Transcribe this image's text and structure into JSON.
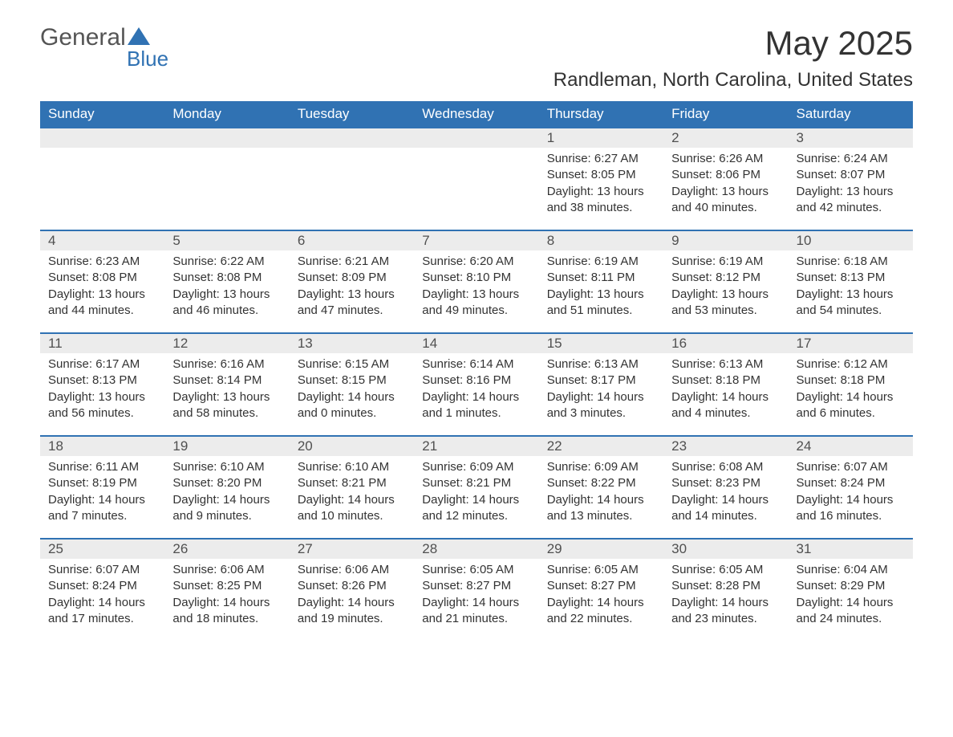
{
  "logo": {
    "general": "General",
    "blue": "Blue"
  },
  "title": "May 2025",
  "location": "Randleman, North Carolina, United States",
  "colors": {
    "header_bg": "#3072b3",
    "header_text": "#ffffff",
    "daynum_bg": "#ececec",
    "border": "#3072b3",
    "text": "#333333"
  },
  "weekday_labels": [
    "Sunday",
    "Monday",
    "Tuesday",
    "Wednesday",
    "Thursday",
    "Friday",
    "Saturday"
  ],
  "first_weekday_index": 4,
  "days": [
    {
      "n": 1,
      "sunrise": "6:27 AM",
      "sunset": "8:05 PM",
      "dh": 13,
      "dm": 38
    },
    {
      "n": 2,
      "sunrise": "6:26 AM",
      "sunset": "8:06 PM",
      "dh": 13,
      "dm": 40
    },
    {
      "n": 3,
      "sunrise": "6:24 AM",
      "sunset": "8:07 PM",
      "dh": 13,
      "dm": 42
    },
    {
      "n": 4,
      "sunrise": "6:23 AM",
      "sunset": "8:08 PM",
      "dh": 13,
      "dm": 44
    },
    {
      "n": 5,
      "sunrise": "6:22 AM",
      "sunset": "8:08 PM",
      "dh": 13,
      "dm": 46
    },
    {
      "n": 6,
      "sunrise": "6:21 AM",
      "sunset": "8:09 PM",
      "dh": 13,
      "dm": 47
    },
    {
      "n": 7,
      "sunrise": "6:20 AM",
      "sunset": "8:10 PM",
      "dh": 13,
      "dm": 49
    },
    {
      "n": 8,
      "sunrise": "6:19 AM",
      "sunset": "8:11 PM",
      "dh": 13,
      "dm": 51
    },
    {
      "n": 9,
      "sunrise": "6:19 AM",
      "sunset": "8:12 PM",
      "dh": 13,
      "dm": 53
    },
    {
      "n": 10,
      "sunrise": "6:18 AM",
      "sunset": "8:13 PM",
      "dh": 13,
      "dm": 54
    },
    {
      "n": 11,
      "sunrise": "6:17 AM",
      "sunset": "8:13 PM",
      "dh": 13,
      "dm": 56
    },
    {
      "n": 12,
      "sunrise": "6:16 AM",
      "sunset": "8:14 PM",
      "dh": 13,
      "dm": 58
    },
    {
      "n": 13,
      "sunrise": "6:15 AM",
      "sunset": "8:15 PM",
      "dh": 14,
      "dm": 0
    },
    {
      "n": 14,
      "sunrise": "6:14 AM",
      "sunset": "8:16 PM",
      "dh": 14,
      "dm": 1
    },
    {
      "n": 15,
      "sunrise": "6:13 AM",
      "sunset": "8:17 PM",
      "dh": 14,
      "dm": 3
    },
    {
      "n": 16,
      "sunrise": "6:13 AM",
      "sunset": "8:18 PM",
      "dh": 14,
      "dm": 4
    },
    {
      "n": 17,
      "sunrise": "6:12 AM",
      "sunset": "8:18 PM",
      "dh": 14,
      "dm": 6
    },
    {
      "n": 18,
      "sunrise": "6:11 AM",
      "sunset": "8:19 PM",
      "dh": 14,
      "dm": 7
    },
    {
      "n": 19,
      "sunrise": "6:10 AM",
      "sunset": "8:20 PM",
      "dh": 14,
      "dm": 9
    },
    {
      "n": 20,
      "sunrise": "6:10 AM",
      "sunset": "8:21 PM",
      "dh": 14,
      "dm": 10
    },
    {
      "n": 21,
      "sunrise": "6:09 AM",
      "sunset": "8:21 PM",
      "dh": 14,
      "dm": 12
    },
    {
      "n": 22,
      "sunrise": "6:09 AM",
      "sunset": "8:22 PM",
      "dh": 14,
      "dm": 13
    },
    {
      "n": 23,
      "sunrise": "6:08 AM",
      "sunset": "8:23 PM",
      "dh": 14,
      "dm": 14
    },
    {
      "n": 24,
      "sunrise": "6:07 AM",
      "sunset": "8:24 PM",
      "dh": 14,
      "dm": 16
    },
    {
      "n": 25,
      "sunrise": "6:07 AM",
      "sunset": "8:24 PM",
      "dh": 14,
      "dm": 17
    },
    {
      "n": 26,
      "sunrise": "6:06 AM",
      "sunset": "8:25 PM",
      "dh": 14,
      "dm": 18
    },
    {
      "n": 27,
      "sunrise": "6:06 AM",
      "sunset": "8:26 PM",
      "dh": 14,
      "dm": 19
    },
    {
      "n": 28,
      "sunrise": "6:05 AM",
      "sunset": "8:27 PM",
      "dh": 14,
      "dm": 21
    },
    {
      "n": 29,
      "sunrise": "6:05 AM",
      "sunset": "8:27 PM",
      "dh": 14,
      "dm": 22
    },
    {
      "n": 30,
      "sunrise": "6:05 AM",
      "sunset": "8:28 PM",
      "dh": 14,
      "dm": 23
    },
    {
      "n": 31,
      "sunrise": "6:04 AM",
      "sunset": "8:29 PM",
      "dh": 14,
      "dm": 24
    }
  ],
  "labels": {
    "sunrise_prefix": "Sunrise: ",
    "sunset_prefix": "Sunset: ",
    "daylight_prefix": "Daylight: ",
    "hours_word": " hours",
    "and_word": " and ",
    "minutes_suffix": " minutes."
  }
}
